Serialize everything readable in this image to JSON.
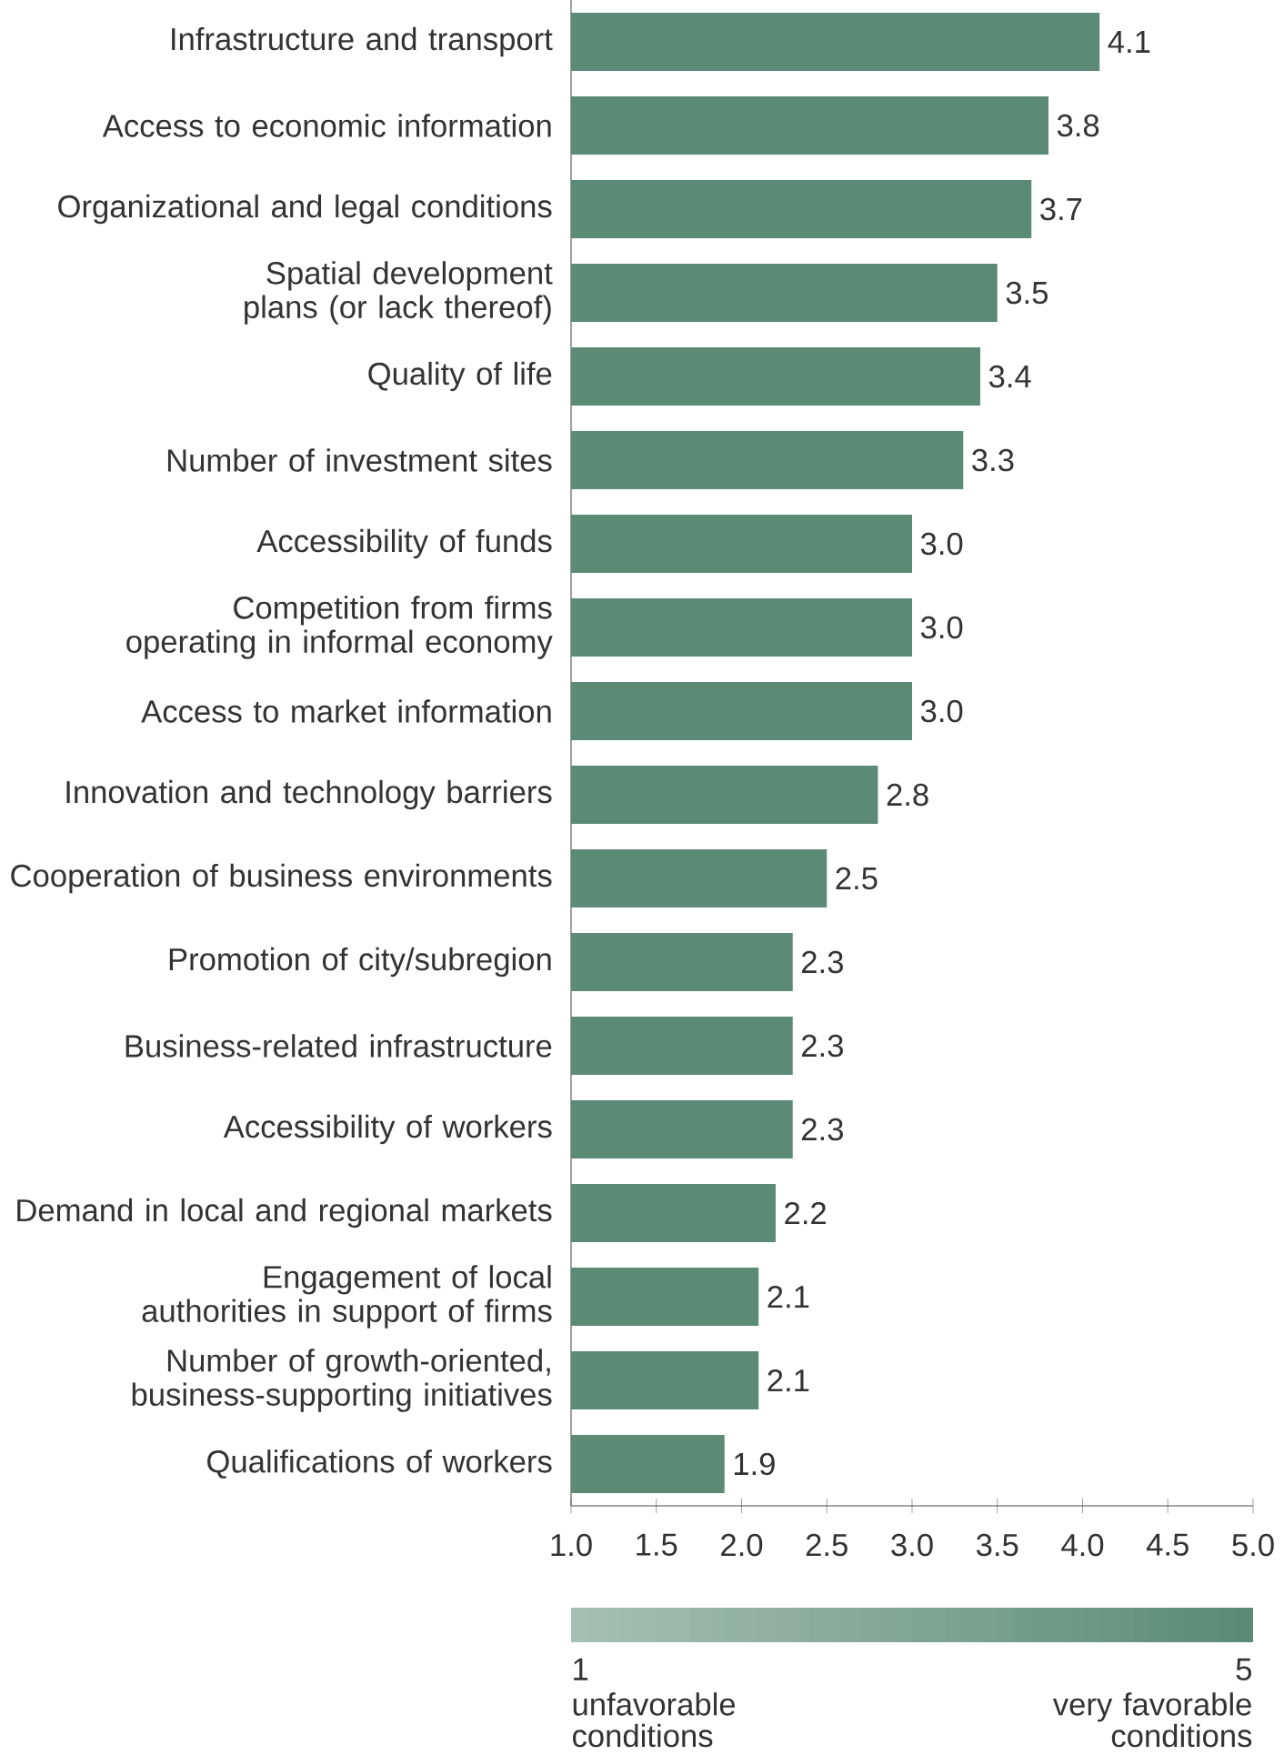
{
  "chart_data": {
    "type": "bar",
    "orientation": "horizontal",
    "color": "#5b8a77",
    "categories": [
      "Infrastructure and transport",
      "Access to economic information",
      "Organizational and legal conditions",
      "Spatial development plans (or lack thereof)",
      "Quality of life",
      "Number of investment sites",
      "Accessibility of funds",
      "Competition from firms operating in informal economy",
      "Access to market information",
      "Innovation and technology barriers",
      "Cooperation of business environments",
      "Promotion of city/subregion",
      "Business-related infrastructure",
      "Accessibility of workers",
      "Demand in local and regional markets",
      "Engagement of local authorities in support of firms",
      "Number of growth-oriented, business-supporting initiatives",
      "Qualifications of workers"
    ],
    "values": [
      4.1,
      3.8,
      3.7,
      3.5,
      3.4,
      3.3,
      3.0,
      3.0,
      3.0,
      2.8,
      2.5,
      2.3,
      2.3,
      2.3,
      2.2,
      2.1,
      2.1,
      1.9
    ],
    "value_labels": [
      "4.1",
      "3.8",
      "3.7",
      "3.5",
      "3.4",
      "3.3",
      "3.0",
      "3.0",
      "3.0",
      "2.8",
      "2.5",
      "2.3",
      "2.3",
      "2.3",
      "2.2",
      "2.1",
      "2.1",
      "1.9"
    ],
    "xlim": [
      1,
      5
    ],
    "xticks": [
      {
        "value": 1,
        "label": "1.0"
      },
      {
        "value": 1.5,
        "label": "1.5"
      },
      {
        "value": 2,
        "label": "2.0"
      },
      {
        "value": 2.5,
        "label": "2.5"
      },
      {
        "value": 3,
        "label": "3.0"
      },
      {
        "value": 3.5,
        "label": "3.5"
      },
      {
        "value": 4,
        "label": "4.0"
      },
      {
        "value": 4.5,
        "label": "4.5"
      },
      {
        "value": 5,
        "label": "5.0"
      }
    ],
    "grid": false,
    "clim": [
      1,
      5
    ],
    "cticks": [
      1,
      5
    ],
    "annotations": [
      "unfavorable conditions",
      "very favorable conditions"
    ]
  }
}
